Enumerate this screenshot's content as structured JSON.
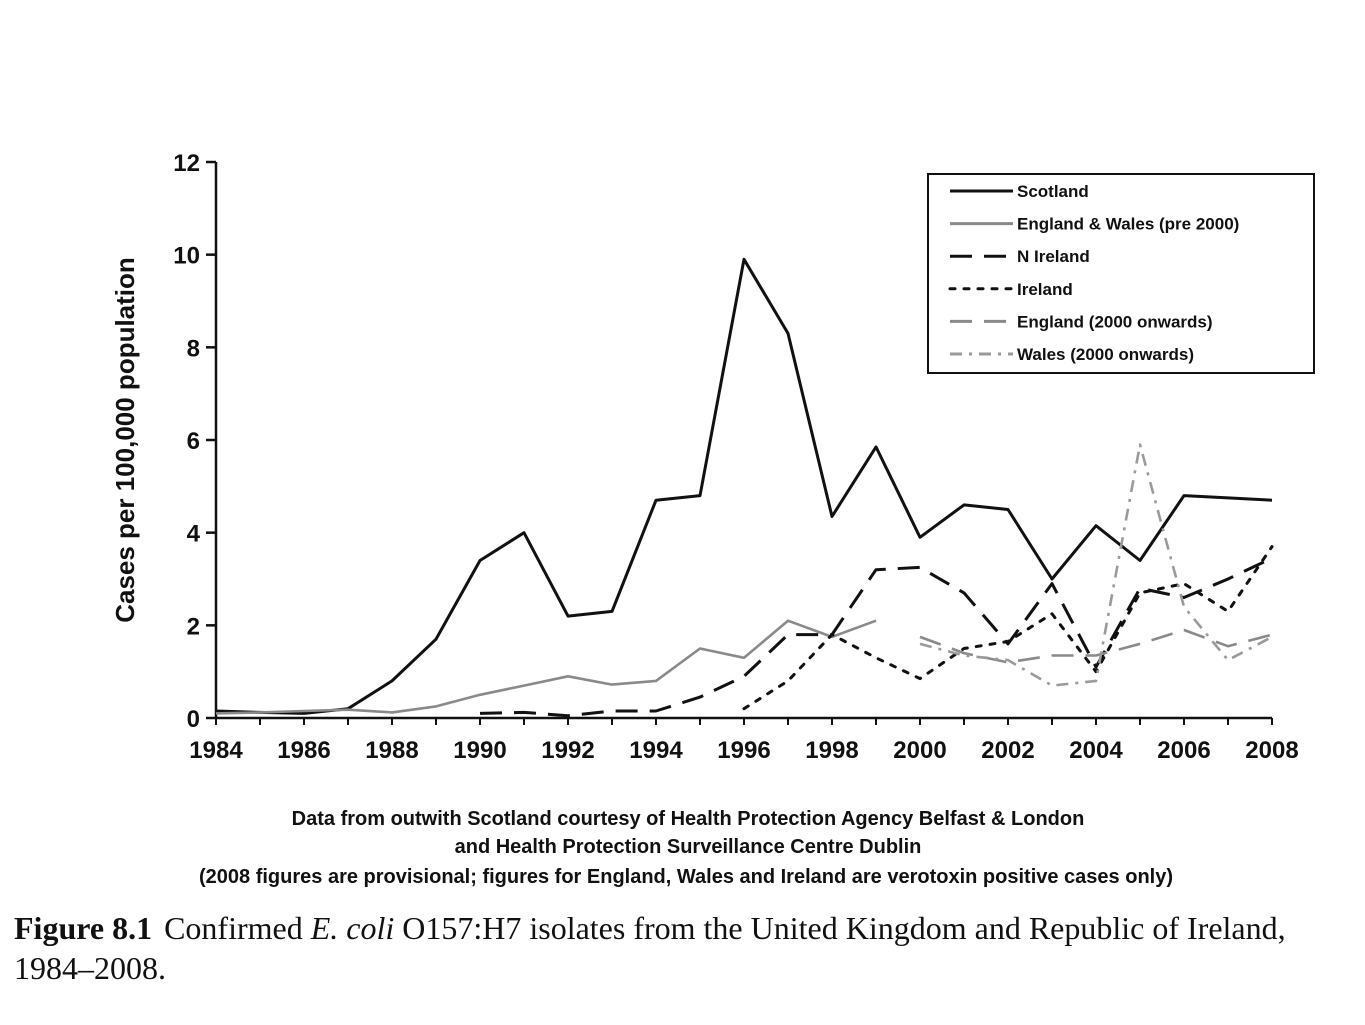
{
  "chart_data": {
    "type": "line",
    "title": "",
    "xlabel": "",
    "ylabel": "Cases per 100,000 population",
    "ylim": [
      0,
      12
    ],
    "xlim": [
      1984,
      2008
    ],
    "yticks": [
      "0",
      "2",
      "4",
      "6",
      "8",
      "10",
      "12"
    ],
    "xticks": [
      "1984",
      "1986",
      "1988",
      "1990",
      "1992",
      "1994",
      "1996",
      "1998",
      "2000",
      "2002",
      "2004",
      "2006",
      "2008"
    ],
    "legend_position": "top-right",
    "grid": false,
    "series": [
      {
        "name": "Scotland",
        "color": "#111111",
        "style": "solid",
        "x": [
          1984,
          1985,
          1986,
          1987,
          1988,
          1989,
          1990,
          1991,
          1992,
          1993,
          1994,
          1995,
          1996,
          1997,
          1998,
          1999,
          2000,
          2001,
          2002,
          2003,
          2004,
          2005,
          2006,
          2007,
          2008
        ],
        "values": [
          0.15,
          0.12,
          0.1,
          0.2,
          0.8,
          1.7,
          3.4,
          4.0,
          2.2,
          2.3,
          4.7,
          4.8,
          9.9,
          8.3,
          4.35,
          5.85,
          3.9,
          4.6,
          4.5,
          3.0,
          4.15,
          3.4,
          4.8,
          4.75,
          4.7
        ]
      },
      {
        "name": "England & Wales (pre 2000)",
        "color": "#8a8a8a",
        "style": "solid",
        "x": [
          1984,
          1985,
          1986,
          1987,
          1988,
          1989,
          1990,
          1991,
          1992,
          1993,
          1994,
          1995,
          1996,
          1997,
          1998,
          1999
        ],
        "values": [
          0.1,
          0.12,
          0.15,
          0.18,
          0.12,
          0.25,
          0.5,
          0.7,
          0.9,
          0.72,
          0.8,
          1.5,
          1.3,
          2.1,
          1.75,
          2.1
        ]
      },
      {
        "name": "N Ireland",
        "color": "#111111",
        "style": "longdash",
        "x": [
          1990,
          1991,
          1992,
          1993,
          1994,
          1995,
          1996,
          1997,
          1998,
          1999,
          2000,
          2001,
          2002,
          2003,
          2004,
          2005,
          2006,
          2007,
          2008
        ],
        "values": [
          0.1,
          0.12,
          0.05,
          0.15,
          0.15,
          0.45,
          0.9,
          1.8,
          1.8,
          3.2,
          3.25,
          2.7,
          1.6,
          2.9,
          1.1,
          2.8,
          2.6,
          3.0,
          3.45
        ]
      },
      {
        "name": "Ireland",
        "color": "#111111",
        "style": "dotted",
        "x": [
          1996,
          1997,
          1998,
          1999,
          2000,
          2001,
          2002,
          2003,
          2004,
          2005,
          2006,
          2007,
          2008
        ],
        "values": [
          0.2,
          0.8,
          1.8,
          1.3,
          0.85,
          1.5,
          1.65,
          2.25,
          1.0,
          2.7,
          2.9,
          2.3,
          3.7
        ]
      },
      {
        "name": "England (2000 onwards)",
        "color": "#8a8a8a",
        "style": "longdash",
        "x": [
          2000,
          2001,
          2002,
          2003,
          2004,
          2005,
          2006,
          2007,
          2008
        ],
        "values": [
          1.75,
          1.4,
          1.2,
          1.35,
          1.35,
          1.6,
          1.9,
          1.55,
          1.8
        ]
      },
      {
        "name": "Wales (2000 onwards)",
        "color": "#9a9a9a",
        "style": "dashdot",
        "x": [
          2000,
          2001,
          2002,
          2003,
          2004,
          2005,
          2006,
          2007,
          2008
        ],
        "values": [
          1.6,
          1.35,
          1.25,
          0.7,
          0.8,
          5.9,
          2.4,
          1.25,
          1.75
        ]
      }
    ],
    "annotations": [
      "Data from outwith Scotland courtesy of Health Protection Agency Belfast & London",
      "and Health Protection Surveillance Centre Dublin",
      "(2008 figures are provisional; figures for England, Wales and Ireland are verotoxin positive cases only)"
    ]
  },
  "caption": {
    "figure_number": "Figure 8.1",
    "text_before": "Confirmed",
    "italic": "E. coli",
    "text_after": "O157:H7 isolates from the United Kingdom and Republic of Ireland, 1984–2008."
  }
}
